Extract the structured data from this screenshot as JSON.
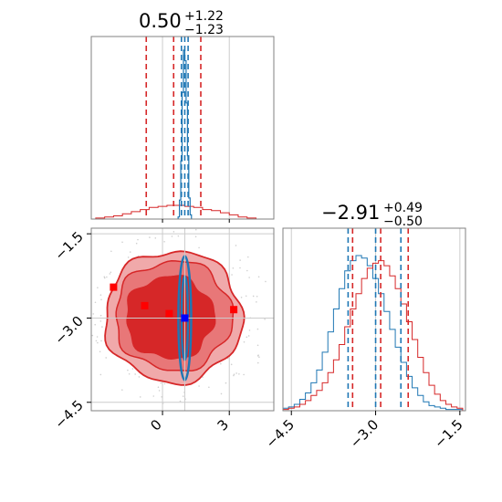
{
  "chart_data": {
    "type": "corner",
    "colors": {
      "red": "#d62728",
      "blue": "#1f77b4",
      "truth_blue": "#0000ff",
      "truth_red": "#ff0000",
      "grid": "#cccccc",
      "axes": "#808080"
    },
    "grid": true,
    "params": [
      {
        "title": {
          "median": "0.50",
          "plus": "+1.22",
          "minus": "−1.23"
        },
        "range": [
          -3.2,
          5.0
        ],
        "ticks": [
          {
            "value": 0,
            "label": "0"
          },
          {
            "value": 3,
            "label": "3"
          }
        ],
        "red_quantiles": [
          -0.73,
          0.5,
          1.72
        ],
        "blue_quantiles": [
          0.85,
          1.0,
          1.15
        ]
      },
      {
        "title": {
          "median": "−2.91",
          "plus": "+0.49",
          "minus": "−0.50"
        },
        "range": [
          -4.65,
          -1.4
        ],
        "ticks": [
          {
            "value": -4.5,
            "label": "−4.5"
          },
          {
            "value": -3.0,
            "label": "−3.0"
          },
          {
            "value": -1.5,
            "label": "−1.5"
          }
        ],
        "red_quantiles": [
          -3.41,
          -2.91,
          -2.42
        ],
        "blue_quantiles": [
          -3.49,
          -3.0,
          -2.55
        ]
      }
    ],
    "y_ticks_2d": [
      {
        "value": -1.5,
        "label": "−1.5"
      },
      {
        "value": -3.0,
        "label": "−3.0"
      },
      {
        "value": -4.5,
        "label": "−4.5"
      }
    ],
    "truth_lines": {
      "x": 1.0,
      "y": -3.0
    },
    "red_points": [
      {
        "x": -2.2,
        "y": -2.45
      },
      {
        "x": -0.8,
        "y": -2.78
      },
      {
        "x": 0.3,
        "y": -2.92
      },
      {
        "x": 3.2,
        "y": -2.85
      }
    ],
    "blue_point": {
      "x": 1.0,
      "y": -3.0
    },
    "marginal_x_red": {
      "bins": [
        -3.0,
        -2.6,
        -2.2,
        -1.8,
        -1.4,
        -1.0,
        -0.6,
        -0.2,
        0.2,
        0.6,
        1.0,
        1.4,
        1.8,
        2.2,
        2.6,
        3.0,
        3.4,
        3.8,
        4.2
      ],
      "heights": [
        1,
        2,
        3,
        5,
        7,
        9,
        11,
        12,
        13,
        13,
        12,
        11,
        9,
        8,
        6,
        4,
        2,
        1
      ]
    },
    "marginal_x_blue": {
      "bins": [
        0.7,
        0.76,
        0.82,
        0.88,
        0.94,
        1.0,
        1.06,
        1.12,
        1.18,
        1.24,
        1.3
      ],
      "heights": [
        2,
        18,
        55,
        120,
        160,
        150,
        110,
        60,
        20,
        4
      ]
    },
    "marginal_y_red": {
      "bins": [
        -4.65,
        -4.55,
        -4.45,
        -4.35,
        -4.25,
        -4.15,
        -4.05,
        -3.95,
        -3.85,
        -3.75,
        -3.65,
        -3.55,
        -3.45,
        -3.35,
        -3.25,
        -3.15,
        -3.05,
        -2.95,
        -2.85,
        -2.75,
        -2.65,
        -2.55,
        -2.45,
        -2.35,
        -2.25,
        -2.15,
        -2.05,
        -1.95,
        -1.85,
        -1.75,
        -1.65,
        -1.55,
        -1.45
      ],
      "heights": [
        1,
        2,
        3,
        5,
        8,
        12,
        16,
        22,
        30,
        40,
        52,
        66,
        80,
        92,
        104,
        112,
        116,
        118,
        114,
        106,
        96,
        84,
        70,
        56,
        42,
        30,
        20,
        13,
        8,
        5,
        3,
        2
      ]
    },
    "marginal_y_blue": {
      "bins": [
        -4.65,
        -4.55,
        -4.45,
        -4.35,
        -4.25,
        -4.15,
        -4.05,
        -3.95,
        -3.85,
        -3.75,
        -3.65,
        -3.55,
        -3.45,
        -3.35,
        -3.25,
        -3.15,
        -3.05,
        -2.95,
        -2.85,
        -2.75,
        -2.65,
        -2.55,
        -2.45,
        -2.35,
        -2.25,
        -2.15,
        -2.05,
        -1.95,
        -1.85,
        -1.75,
        -1.65,
        -1.55,
        -1.45
      ],
      "heights": [
        2,
        3,
        5,
        9,
        14,
        22,
        32,
        46,
        62,
        80,
        96,
        110,
        118,
        122,
        120,
        114,
        104,
        92,
        78,
        64,
        50,
        38,
        27,
        18,
        12,
        7,
        4,
        3,
        2,
        1,
        1,
        1
      ]
    }
  }
}
